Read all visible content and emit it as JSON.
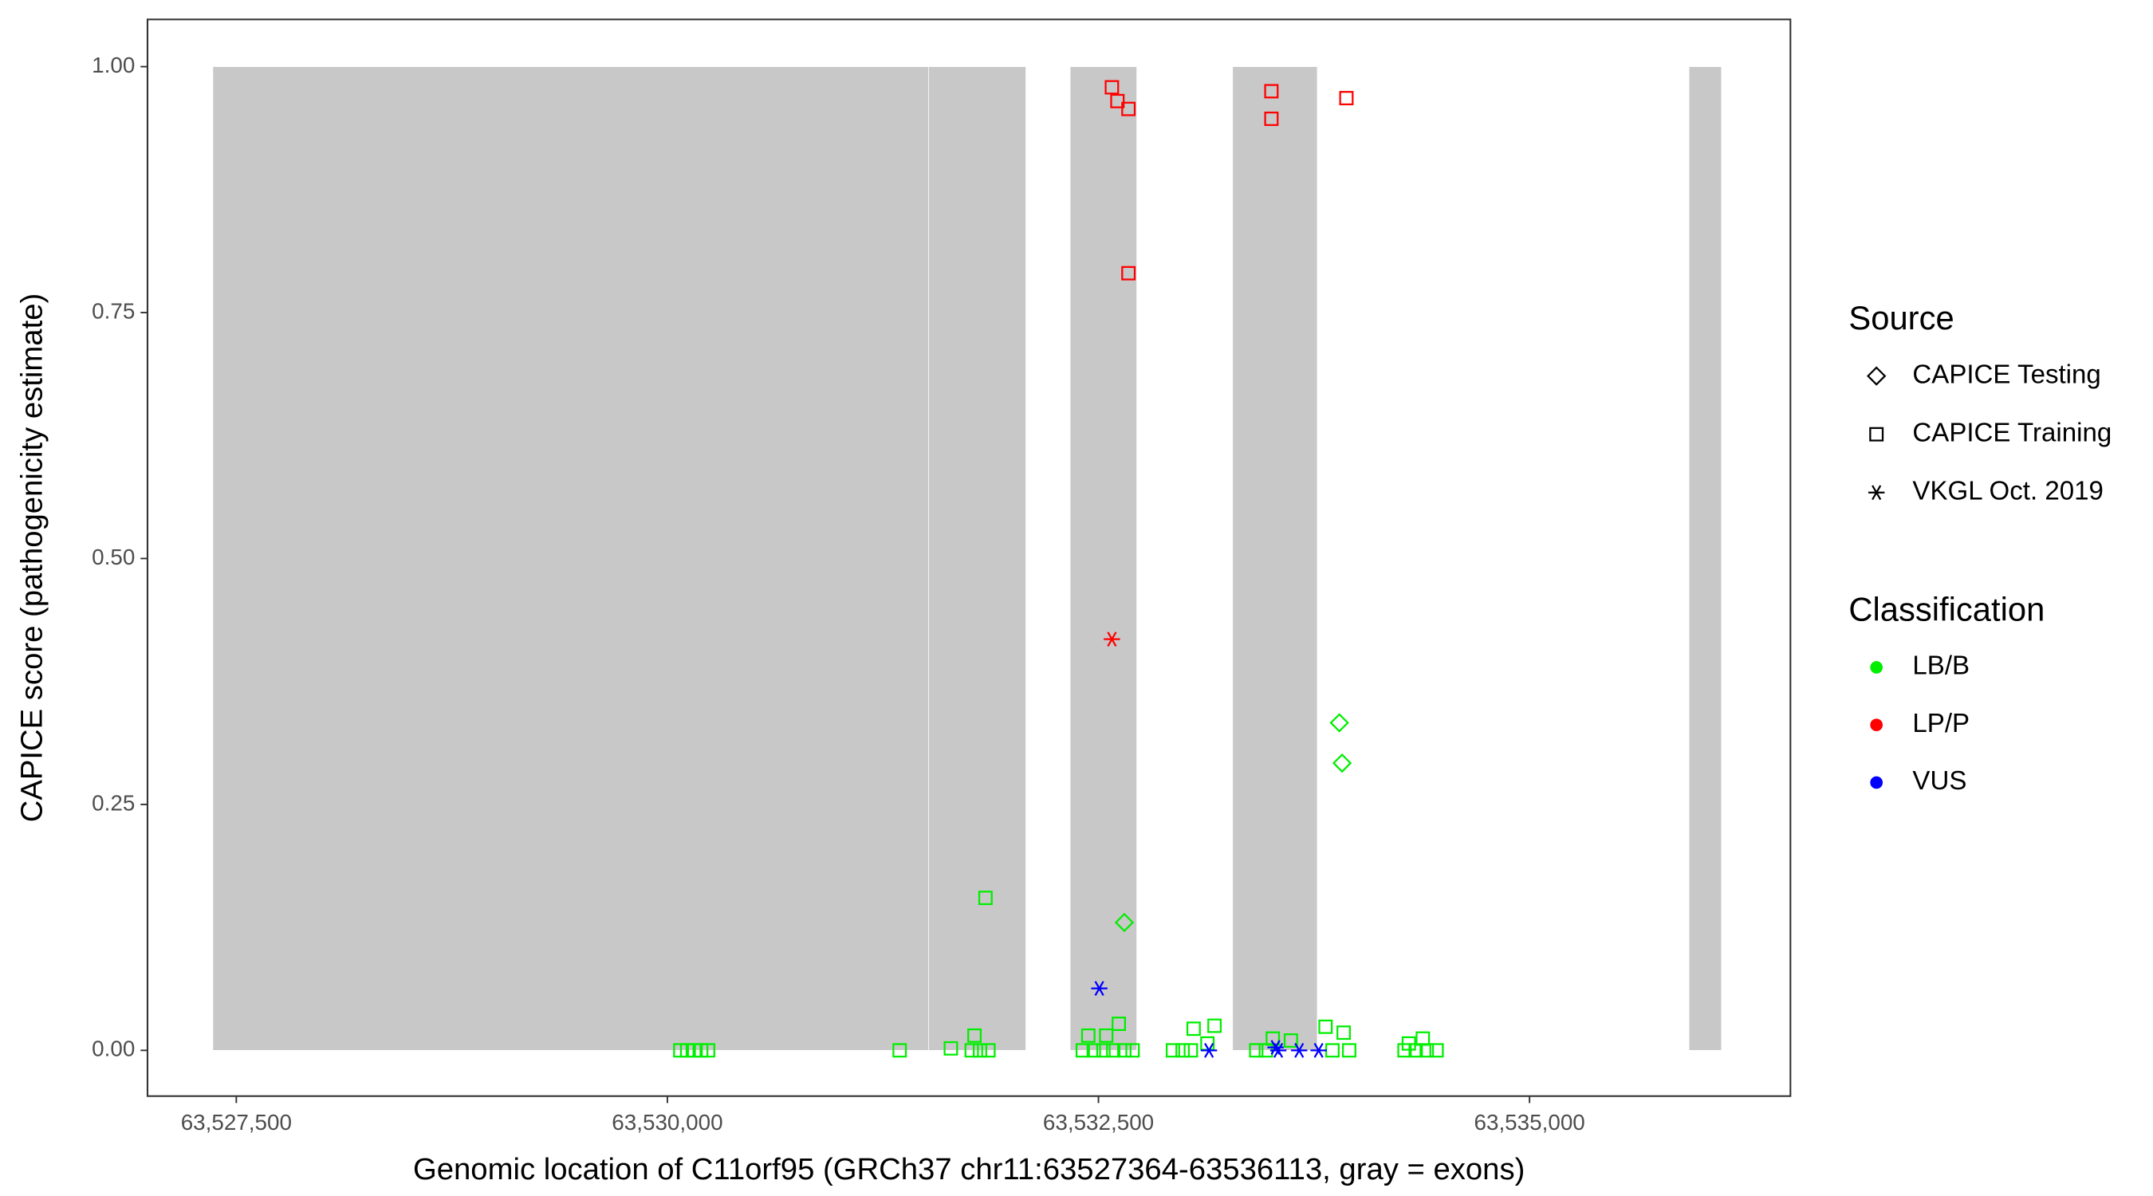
{
  "chart_data": {
    "type": "scatter",
    "x_label": "Genomic location of C11orf95 (GRCh37 chr11:63527364-63536113, gray = exons)",
    "y_label": "CAPICE score (pathogenicity estimate)",
    "xlim": [
      63526985,
      63536513
    ],
    "ylim": [
      -0.0465,
      1.048
    ],
    "xticks": [
      {
        "value": 63527500,
        "label": "63,527,500"
      },
      {
        "value": 63530000,
        "label": "63,530,000"
      },
      {
        "value": 63532500,
        "label": "63,532,500"
      },
      {
        "value": 63535000,
        "label": "63,535,000"
      }
    ],
    "yticks": [
      {
        "value": 0,
        "label": "0.00"
      },
      {
        "value": 0.25,
        "label": "0.25"
      },
      {
        "value": 0.5,
        "label": "0.50"
      },
      {
        "value": 0.75,
        "label": "0.75"
      },
      {
        "value": 1,
        "label": "1.00"
      }
    ],
    "exon_color": "#c8c8c8",
    "exons": [
      [
        63527364,
        63531515
      ],
      [
        63531515,
        63532079
      ],
      [
        63532336,
        63532722
      ],
      [
        63533278,
        63533769
      ],
      [
        63535925,
        63536113
      ]
    ],
    "exon_ylim": [
      0,
      1
    ],
    "source_legend": {
      "title": "Source",
      "items": [
        {
          "name": "CAPICE Testing",
          "shape": "diamond"
        },
        {
          "name": "CAPICE Training",
          "shape": "square"
        },
        {
          "name": "VKGL Oct. 2019",
          "shape": "asterisk"
        }
      ]
    },
    "class_legend": {
      "title": "Classification",
      "items": [
        {
          "name": "LB/B",
          "color": "#00ee00"
        },
        {
          "name": "LP/P",
          "color": "#ff0000"
        },
        {
          "name": "VUS",
          "color": "#0000ff"
        }
      ]
    },
    "series": [
      {
        "source": "CAPICE Training",
        "classification": "LB/B",
        "x": [
          63530075,
          63530115,
          63530156,
          63530196,
          63530236,
          63531347,
          63531644,
          63531781,
          63531765,
          63531813,
          63531862,
          63531845,
          63532409,
          63532473,
          63532529,
          63532586,
          63532650,
          63532698,
          63532441,
          63532545,
          63532618,
          63532932,
          63532988,
          63533036,
          63533052,
          63533173,
          63533132,
          63533415,
          63533471,
          63533511,
          63533616,
          63533817,
          63533922,
          63533857,
          63533954,
          63534275,
          63534340,
          63534404,
          63534461,
          63534300,
          63534381
        ],
        "values": [
          0,
          0,
          0,
          0,
          0,
          0,
          0.002,
          0.015,
          0,
          0,
          0,
          0.155,
          0,
          0,
          0,
          0,
          0,
          0,
          0.015,
          0.015,
          0.027,
          0,
          0,
          0,
          0.022,
          0.025,
          0.007,
          0,
          0,
          0.012,
          0.01,
          0.024,
          0.018,
          0,
          0,
          0,
          0,
          0,
          0,
          0.007,
          0.012
        ]
      },
      {
        "source": "CAPICE Testing",
        "classification": "LB/B",
        "x": [
          63532650,
          63533897,
          63533913
        ],
        "values": [
          0.13,
          0.333,
          0.292
        ]
      },
      {
        "source": "CAPICE Training",
        "classification": "LP/P",
        "x": [
          63532578,
          63532610,
          63532674,
          63532674,
          63533503,
          63533503,
          63533938
        ],
        "values": [
          0.979,
          0.965,
          0.957,
          0.79,
          0.975,
          0.947,
          0.968
        ]
      },
      {
        "source": "VKGL Oct. 2019",
        "classification": "LP/P",
        "x": [
          63532578
        ],
        "values": [
          0.418
        ]
      },
      {
        "source": "VKGL Oct. 2019",
        "classification": "VUS",
        "x": [
          63532505,
          63533141,
          63533527,
          63533543,
          63533664,
          63533777
        ],
        "values": [
          0.063,
          0,
          0.003,
          0,
          0,
          0
        ]
      }
    ]
  }
}
